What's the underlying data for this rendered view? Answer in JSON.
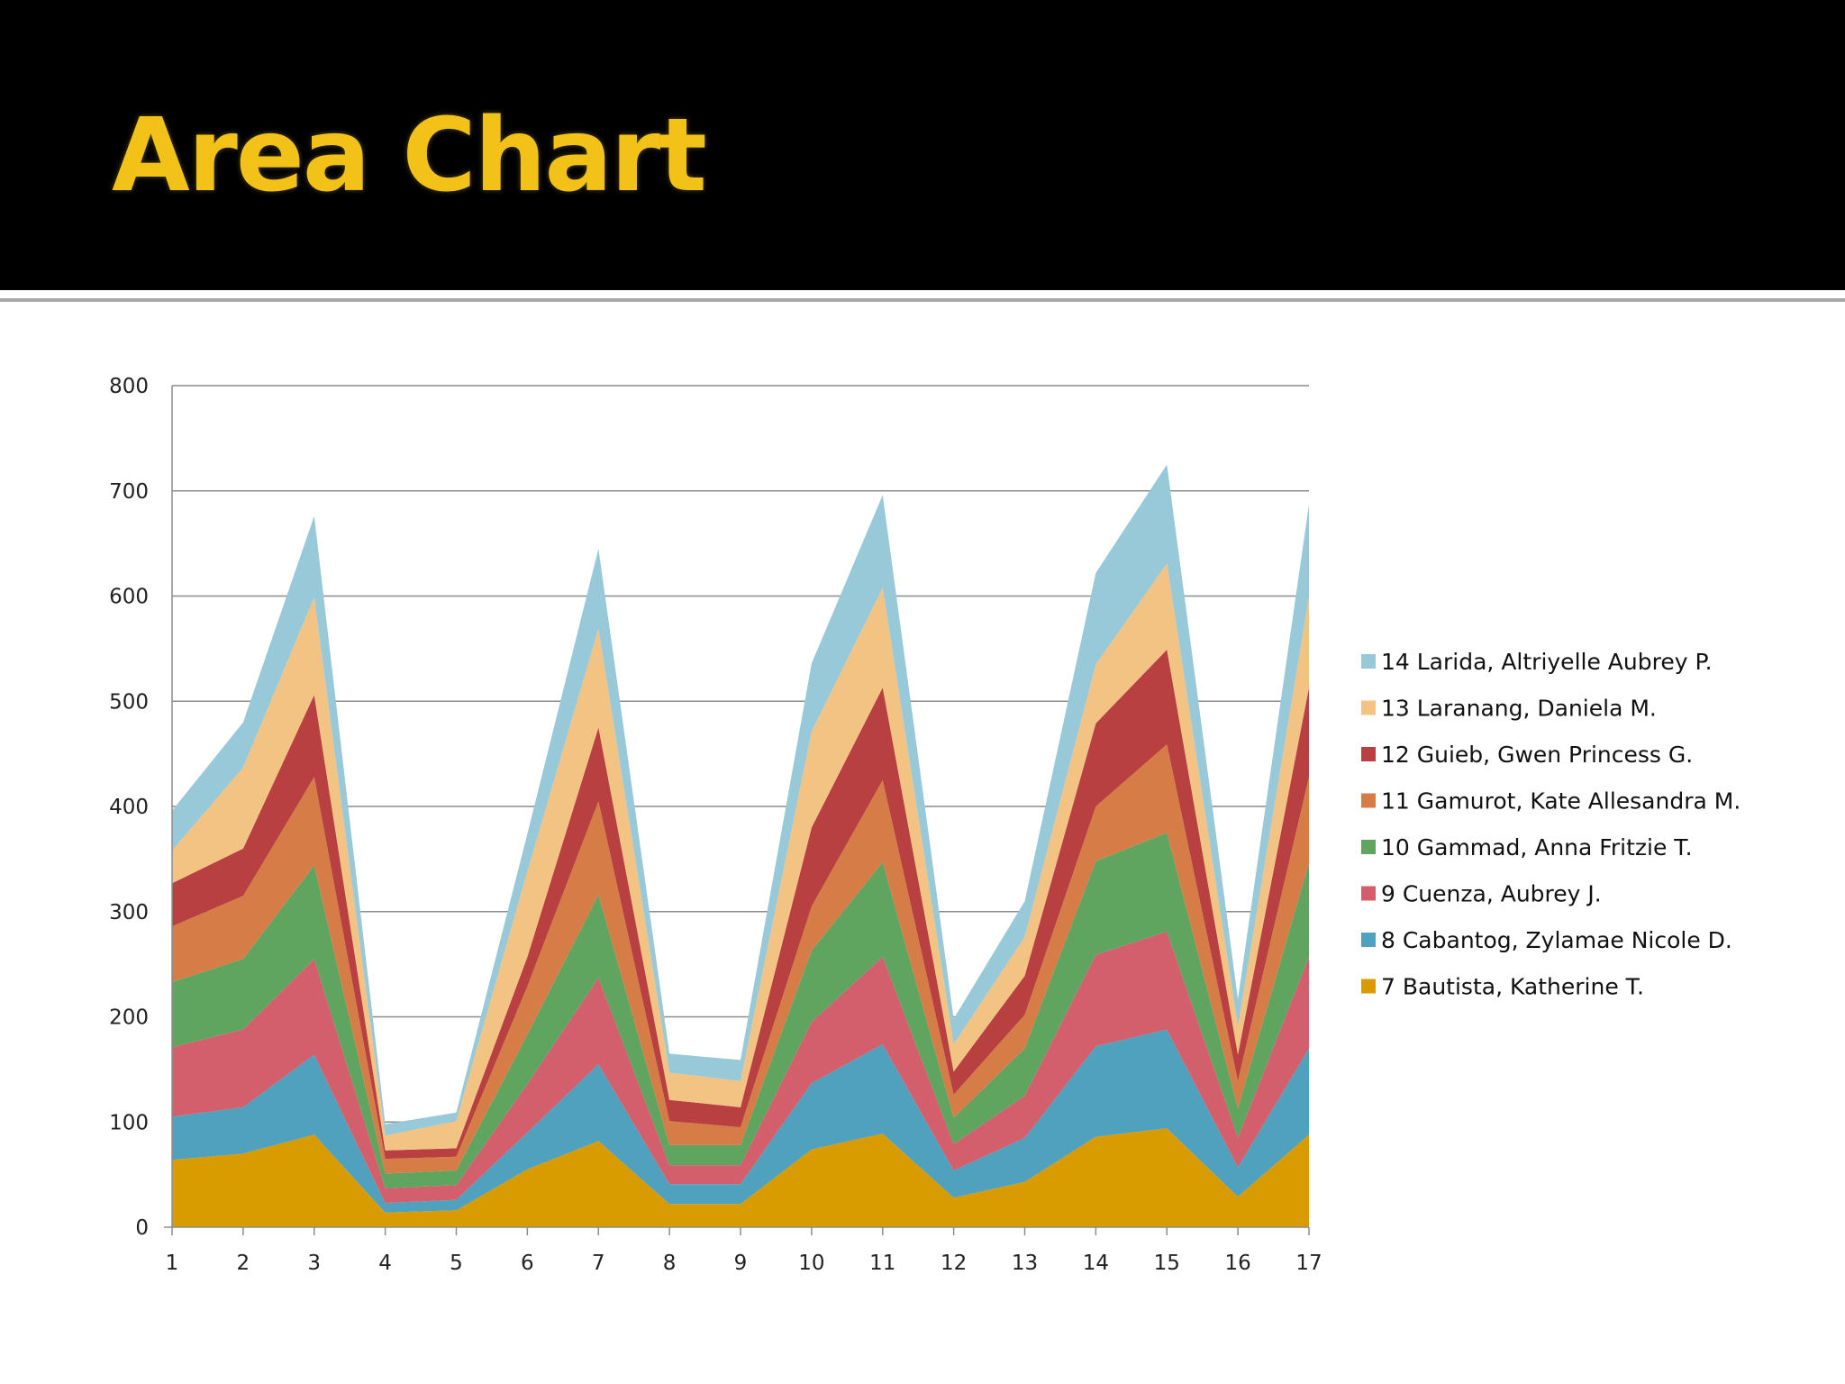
{
  "slide": {
    "title": "Area Chart"
  },
  "colors": {
    "title": "#f2c219",
    "header_bg": "#000000"
  },
  "chart_data": {
    "type": "area",
    "stacked": true,
    "title": "",
    "xlabel": "",
    "ylabel": "",
    "ylim": [
      0,
      800
    ],
    "yticks": [
      "0",
      "100",
      "200",
      "300",
      "400",
      "500",
      "600",
      "700",
      "800"
    ],
    "grid": true,
    "legend": "right",
    "x": [
      "1",
      "2",
      "3",
      "4",
      "5",
      "6",
      "7",
      "8",
      "9",
      "10",
      "11",
      "12",
      "13",
      "14",
      "15",
      "16",
      "17"
    ],
    "series": [
      {
        "name": "7 Bautista, Katherine T.",
        "color": "#d89c00",
        "values": [
          64,
          70,
          88,
          14,
          16,
          55,
          82,
          22,
          22,
          74,
          89,
          28,
          43,
          86,
          94,
          29,
          88
        ]
      },
      {
        "name": "8 Cabantog, Zylamae Nicole D.",
        "color": "#4fa1bd",
        "values": [
          41,
          44,
          76,
          9,
          10,
          35,
          73,
          19,
          19,
          63,
          85,
          26,
          42,
          86,
          94,
          28,
          82
        ]
      },
      {
        "name": "9 Cuenza, Aubrey J.",
        "color": "#d45f6c",
        "values": [
          66,
          74,
          91,
          14,
          14,
          46,
          82,
          18,
          18,
          58,
          83,
          25,
          40,
          87,
          93,
          28,
          87
        ]
      },
      {
        "name": "10 Gammad, Anna Fritzie T.",
        "color": "#5fa560",
        "values": [
          62,
          67,
          89,
          14,
          14,
          47,
          79,
          19,
          19,
          68,
          90,
          25,
          45,
          89,
          94,
          28,
          89
        ]
      },
      {
        "name": "11 Gamurot, Kate Allesandra M.",
        "color": "#d67d47",
        "values": [
          53,
          60,
          84,
          14,
          13,
          46,
          89,
          23,
          17,
          42,
          78,
          22,
          32,
          52,
          84,
          26,
          82
        ]
      },
      {
        "name": "12 Guieb, Gwen Princess G.",
        "color": "#b84040",
        "values": [
          41,
          45,
          78,
          8,
          8,
          28,
          70,
          20,
          19,
          75,
          88,
          22,
          37,
          79,
          90,
          25,
          85
        ]
      },
      {
        "name": "13 Laranang, Daniela M.",
        "color": "#f3c384",
        "values": [
          31,
          77,
          93,
          14,
          26,
          81,
          94,
          26,
          25,
          91,
          95,
          26,
          37,
          56,
          82,
          27,
          86
        ]
      },
      {
        "name": "14 Larida, Altriyelle Aubrey P.",
        "color": "#98c9d9",
        "values": [
          38,
          43,
          77,
          11,
          8,
          36,
          76,
          18,
          20,
          65,
          88,
          24,
          34,
          87,
          94,
          26,
          88
        ]
      }
    ]
  }
}
